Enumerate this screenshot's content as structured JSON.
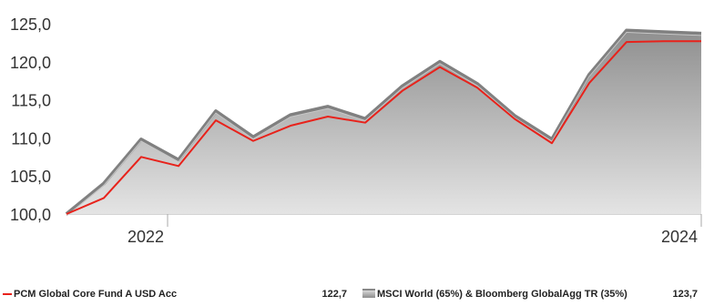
{
  "chart_data": {
    "type": "area",
    "x": [
      "2021-07",
      "2021-09",
      "2021-11",
      "2022-01",
      "2022-03",
      "2022-05",
      "2022-07",
      "2022-09",
      "2022-11",
      "2023-01",
      "2023-03",
      "2023-05",
      "2023-07",
      "2023-09",
      "2023-11",
      "2024-01",
      "2024-03",
      "2024-05"
    ],
    "x_tick_labels": [
      "2022",
      "2024"
    ],
    "ylim": [
      100,
      125
    ],
    "y_ticks": [
      "100,0",
      "105,0",
      "110,0",
      "115,0",
      "120,0",
      "125,0"
    ],
    "grid": false,
    "series": [
      {
        "name": "PCM Global Core Fund A USD Acc",
        "display_value": "122,7",
        "color": "#e8221b",
        "values": [
          100.0,
          102.1,
          107.5,
          106.3,
          112.3,
          109.6,
          111.6,
          112.8,
          112.0,
          116.2,
          119.3,
          116.6,
          112.5,
          109.3,
          117.2,
          122.6,
          122.7,
          122.7
        ]
      },
      {
        "name": "MSCI World (65%) & Bloomberg GlobalAgg TR (35%)",
        "display_value": "123,7",
        "color": "#808080",
        "values": [
          100.0,
          104.0,
          109.8,
          107.1,
          113.5,
          110.1,
          113.0,
          114.1,
          112.5,
          116.8,
          120.0,
          117.1,
          112.9,
          109.8,
          118.3,
          124.1,
          123.9,
          123.7
        ]
      }
    ]
  }
}
